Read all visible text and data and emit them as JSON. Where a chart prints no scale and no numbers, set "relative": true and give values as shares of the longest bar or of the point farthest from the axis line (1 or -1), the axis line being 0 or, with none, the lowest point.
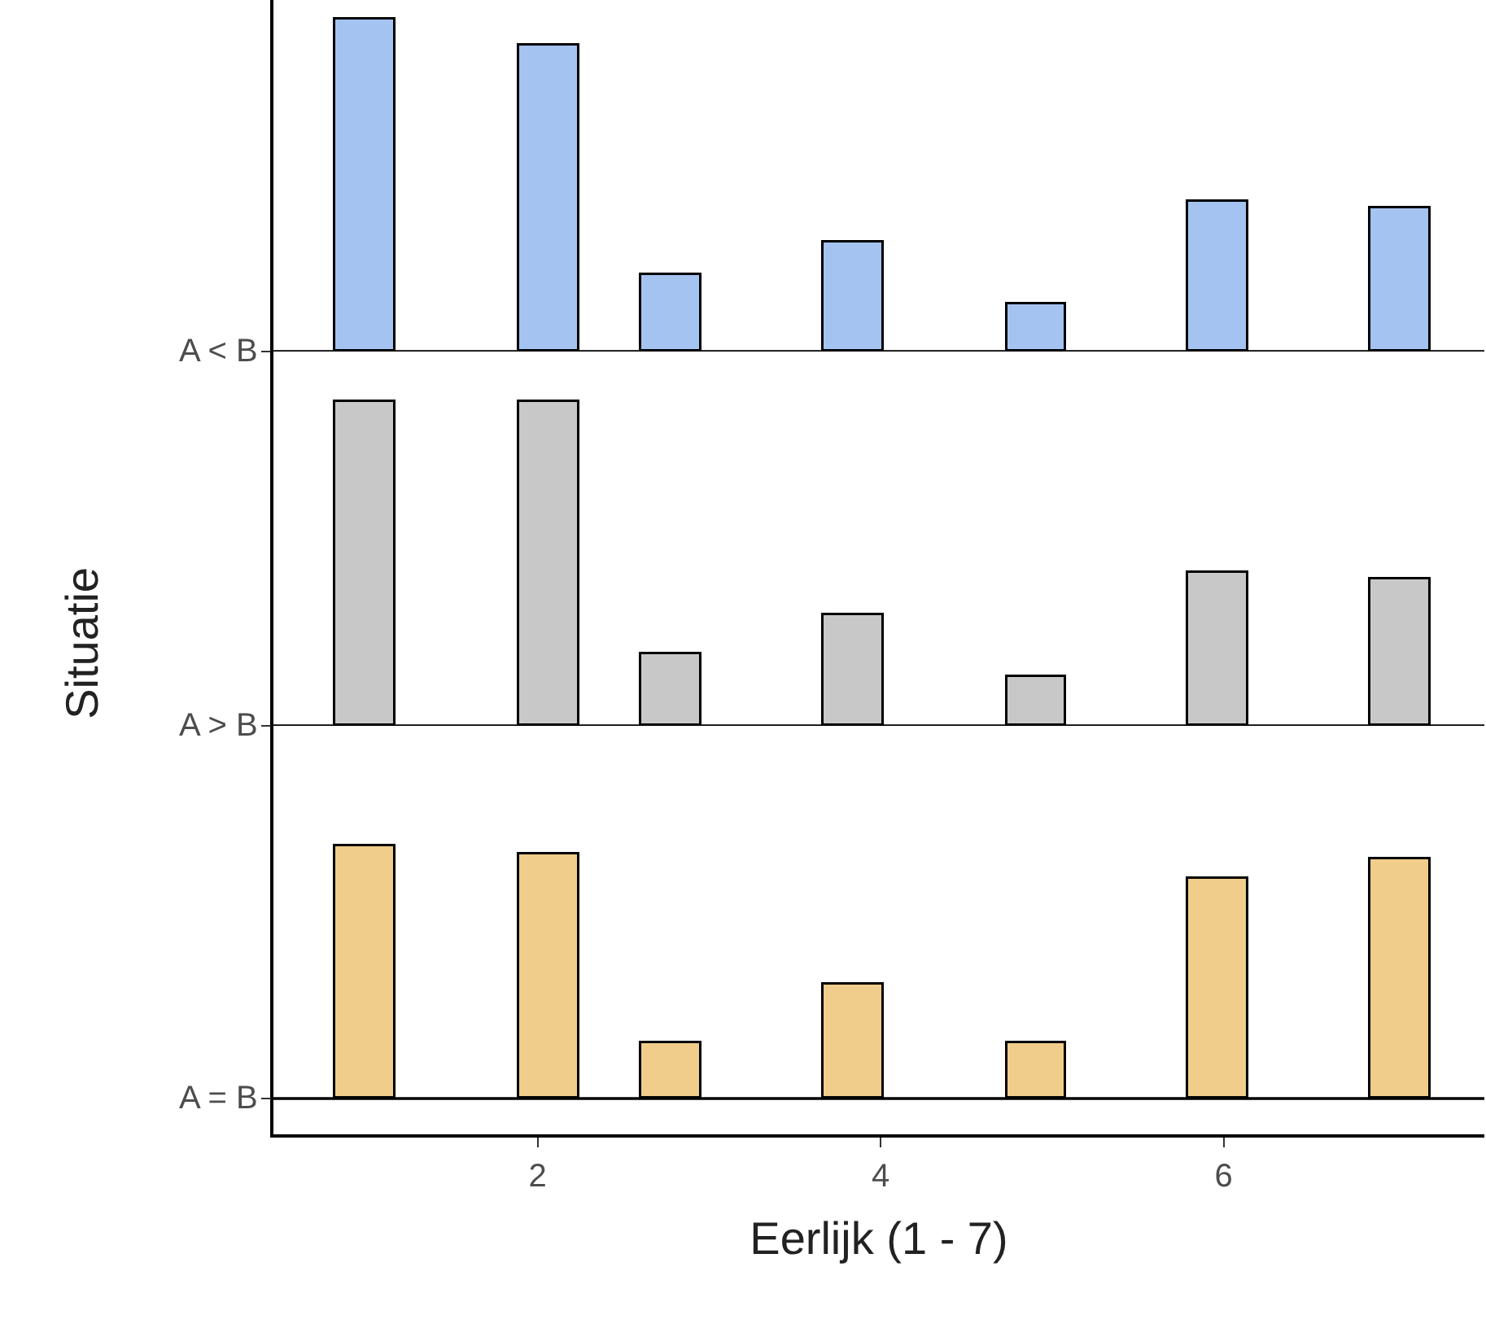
{
  "chart_data": [
    {
      "type": "bar",
      "relative": true,
      "tick_labels": false,
      "x": [
        1.0,
        2.07,
        2.78,
        3.84,
        4.91,
        5.97,
        7.03
      ],
      "xlim": [
        0.46,
        7.52
      ],
      "xticks": [
        2,
        4,
        6
      ],
      "series": [
        {
          "name": "A < B",
          "color": "#a4c3f0",
          "values": [
            1.0,
            0.92,
            0.23,
            0.33,
            0.14,
            0.45,
            0.43
          ]
        }
      ]
    },
    {
      "type": "bar",
      "relative": true,
      "tick_labels": false,
      "ylabel": "Situatie",
      "x": [
        1.0,
        2.07,
        2.78,
        3.84,
        4.91,
        5.97,
        7.03
      ],
      "xlim": [
        0.46,
        7.52
      ],
      "xticks": [
        2,
        4,
        6
      ],
      "series": [
        {
          "name": "A > B",
          "color": "#c8c8c8",
          "values": [
            1.0,
            1.0,
            0.22,
            0.34,
            0.15,
            0.47,
            0.45
          ]
        }
      ]
    },
    {
      "type": "bar",
      "relative": true,
      "tick_labels": "x",
      "xlabel": "Eerlijk (1 - 7)",
      "x": [
        1.0,
        2.07,
        2.78,
        3.84,
        4.91,
        5.97,
        7.03
      ],
      "xlim": [
        0.46,
        7.52
      ],
      "xticks": [
        2,
        4,
        6
      ],
      "series": [
        {
          "name": "A = B",
          "color": "#f0cd8a",
          "values": [
            1.0,
            0.97,
            0.22,
            0.45,
            0.22,
            0.87,
            0.95
          ]
        }
      ]
    }
  ]
}
